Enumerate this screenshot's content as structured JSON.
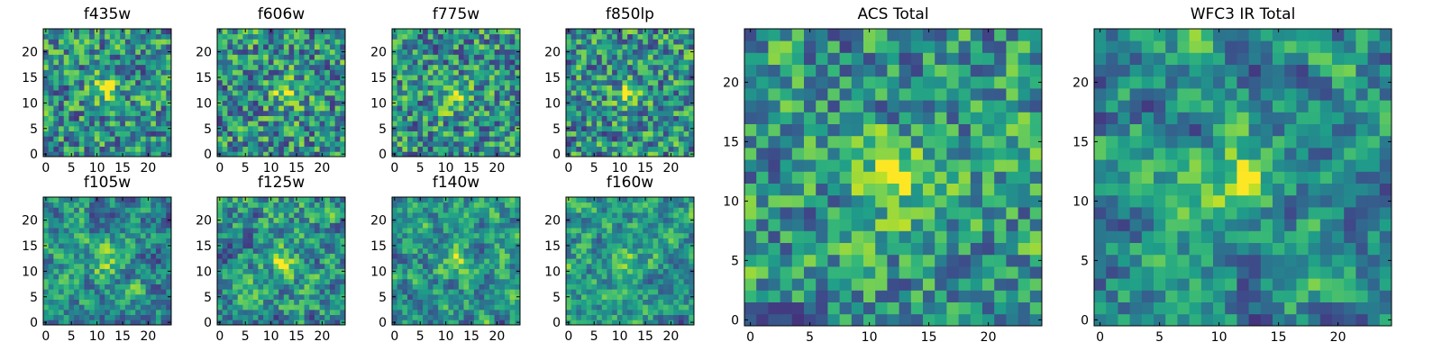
{
  "chart_data": [
    {
      "type": "heatmap",
      "title": "f435w",
      "xlim": [
        -0.5,
        24.5
      ],
      "ylim": [
        -0.5,
        24.5
      ],
      "xticks": [
        0,
        5,
        10,
        15,
        20
      ],
      "yticks": [
        0,
        5,
        10,
        15,
        20
      ],
      "peak": [
        12,
        13
      ],
      "peak_strength": 0.35,
      "seed": 11,
      "smooth": 0.15,
      "colormap": "viridis"
    },
    {
      "type": "heatmap",
      "title": "f606w",
      "xlim": [
        -0.5,
        24.5
      ],
      "ylim": [
        -0.5,
        24.5
      ],
      "xticks": [
        0,
        5,
        10,
        15,
        20
      ],
      "yticks": [
        0,
        5,
        10,
        15,
        20
      ],
      "peak": [
        13,
        12
      ],
      "peak_strength": 0.35,
      "seed": 23,
      "smooth": 0.15,
      "colormap": "viridis"
    },
    {
      "type": "heatmap",
      "title": "f775w",
      "xlim": [
        -0.5,
        24.5
      ],
      "ylim": [
        -0.5,
        24.5
      ],
      "xticks": [
        0,
        5,
        10,
        15,
        20
      ],
      "yticks": [
        0,
        5,
        10,
        15,
        20
      ],
      "peak": [
        12,
        11
      ],
      "peak_strength": 0.35,
      "seed": 37,
      "smooth": 0.15,
      "colormap": "viridis"
    },
    {
      "type": "heatmap",
      "title": "f850lp",
      "xlim": [
        -0.5,
        24.5
      ],
      "ylim": [
        -0.5,
        24.5
      ],
      "xticks": [
        0,
        5,
        10,
        15,
        20
      ],
      "yticks": [
        0,
        5,
        10,
        15,
        20
      ],
      "peak": [
        12,
        12
      ],
      "peak_strength": 0.3,
      "seed": 41,
      "smooth": 0.15,
      "colormap": "viridis"
    },
    {
      "type": "heatmap",
      "title": "f105w",
      "xlim": [
        -0.5,
        24.5
      ],
      "ylim": [
        -0.5,
        24.5
      ],
      "xticks": [
        0,
        5,
        10,
        15,
        20
      ],
      "yticks": [
        0,
        5,
        10,
        15,
        20
      ],
      "peak": [
        12,
        12
      ],
      "peak_strength": 0.3,
      "seed": 53,
      "smooth": 0.55,
      "colormap": "viridis"
    },
    {
      "type": "heatmap",
      "title": "f125w",
      "xlim": [
        -0.5,
        24.5
      ],
      "ylim": [
        -0.5,
        24.5
      ],
      "xticks": [
        0,
        5,
        10,
        15,
        20
      ],
      "yticks": [
        0,
        5,
        10,
        15,
        20
      ],
      "peak": [
        12,
        12
      ],
      "peak_strength": 0.3,
      "seed": 67,
      "smooth": 0.55,
      "colormap": "viridis"
    },
    {
      "type": "heatmap",
      "title": "f140w",
      "xlim": [
        -0.5,
        24.5
      ],
      "ylim": [
        -0.5,
        24.5
      ],
      "xticks": [
        0,
        5,
        10,
        15,
        20
      ],
      "yticks": [
        0,
        5,
        10,
        15,
        20
      ],
      "peak": [
        12,
        12
      ],
      "peak_strength": 0.3,
      "seed": 79,
      "smooth": 0.55,
      "colormap": "viridis"
    },
    {
      "type": "heatmap",
      "title": "f160w",
      "xlim": [
        -0.5,
        24.5
      ],
      "ylim": [
        -0.5,
        24.5
      ],
      "xticks": [
        0,
        5,
        10,
        15,
        20
      ],
      "yticks": [
        0,
        5,
        10,
        15,
        20
      ],
      "peak": [
        12,
        11
      ],
      "peak_strength": 0.35,
      "seed": 83,
      "smooth": 0.55,
      "colormap": "viridis"
    },
    {
      "type": "heatmap",
      "title": "ACS Total",
      "xlim": [
        -0.5,
        24.5
      ],
      "ylim": [
        -0.5,
        24.5
      ],
      "xticks": [
        0,
        5,
        10,
        15,
        20
      ],
      "yticks": [
        0,
        5,
        10,
        15,
        20
      ],
      "peak": [
        12,
        12
      ],
      "peak_strength": 0.45,
      "seed": 97,
      "smooth": 0.3,
      "colormap": "viridis"
    },
    {
      "type": "heatmap",
      "title": "WFC3 IR Total",
      "xlim": [
        -0.5,
        24.5
      ],
      "ylim": [
        -0.5,
        24.5
      ],
      "xticks": [
        0,
        5,
        10,
        15,
        20
      ],
      "yticks": [
        0,
        5,
        10,
        15,
        20
      ],
      "peak": [
        12,
        12
      ],
      "peak_strength": 0.5,
      "seed": 101,
      "smooth": 0.6,
      "colormap": "viridis"
    }
  ]
}
